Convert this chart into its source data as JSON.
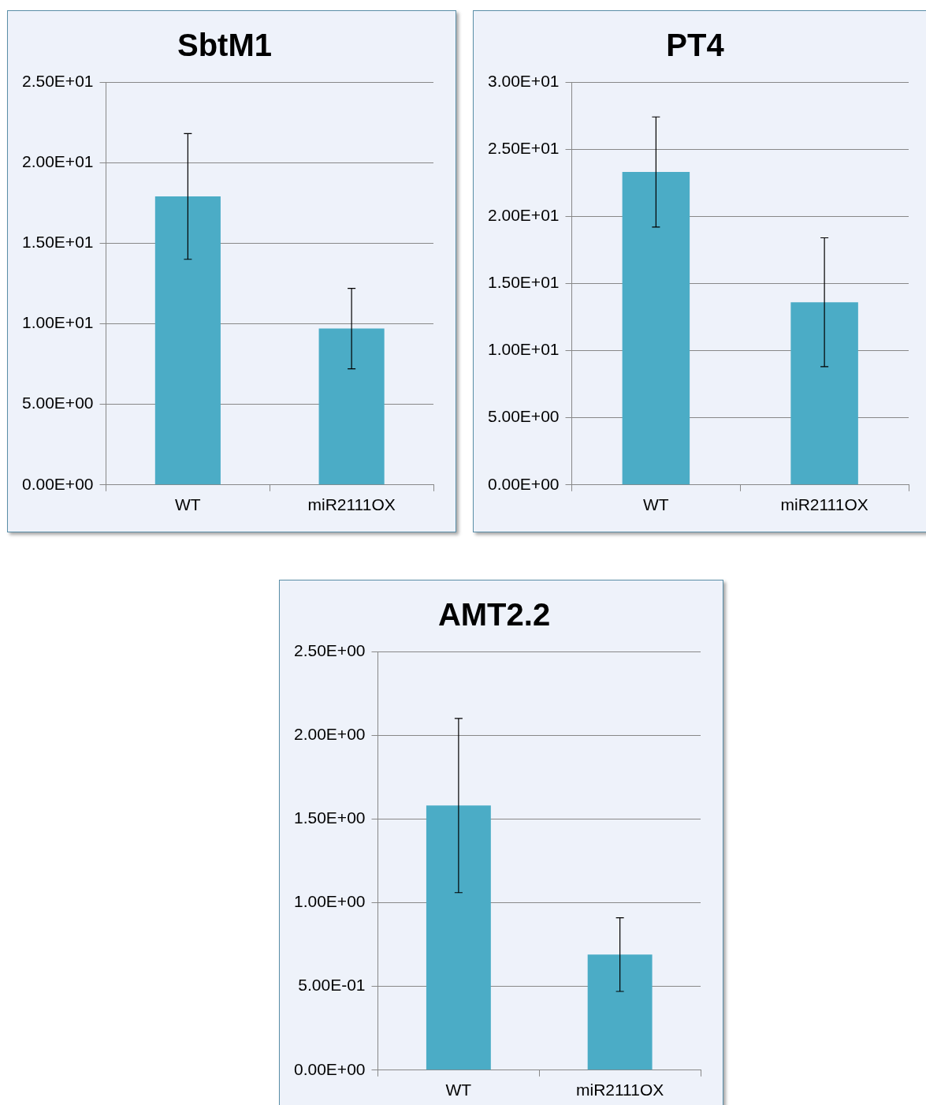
{
  "chart_data": [
    {
      "type": "bar",
      "title": "SbtM1",
      "categories": [
        "WT",
        "miR2111OX"
      ],
      "values": [
        17.9,
        9.7
      ],
      "errors": [
        3.9,
        2.5
      ],
      "color": "#4bacc6",
      "ylim": [
        0,
        25
      ],
      "yticks": [
        {
          "value": 0,
          "label": "0.00E+00"
        },
        {
          "value": 5,
          "label": "5.00E+00"
        },
        {
          "value": 10,
          "label": "1.00E+01"
        },
        {
          "value": 15,
          "label": "1.50E+01"
        },
        {
          "value": 20,
          "label": "2.00E+01"
        },
        {
          "value": 25,
          "label": "2.50E+01"
        }
      ],
      "grid": "y"
    },
    {
      "type": "bar",
      "title": "PT4",
      "categories": [
        "WT",
        "miR2111OX"
      ],
      "values": [
        23.3,
        13.6
      ],
      "errors": [
        4.1,
        4.8
      ],
      "color": "#4bacc6",
      "ylim": [
        0,
        30
      ],
      "yticks": [
        {
          "value": 0,
          "label": "0.00E+00"
        },
        {
          "value": 5,
          "label": "5.00E+00"
        },
        {
          "value": 10,
          "label": "1.00E+01"
        },
        {
          "value": 15,
          "label": "1.50E+01"
        },
        {
          "value": 20,
          "label": "2.00E+01"
        },
        {
          "value": 25,
          "label": "2.50E+01"
        },
        {
          "value": 30,
          "label": "3.00E+01"
        }
      ],
      "grid": "y"
    },
    {
      "type": "bar",
      "title": "AMT2.2",
      "categories": [
        "WT",
        "miR2111OX"
      ],
      "values": [
        1.58,
        0.69
      ],
      "errors": [
        0.52,
        0.22
      ],
      "color": "#4bacc6",
      "ylim": [
        0,
        2.5
      ],
      "yticks": [
        {
          "value": 0,
          "label": "0.00E+00"
        },
        {
          "value": 0.5,
          "label": "5.00E-01"
        },
        {
          "value": 1,
          "label": "1.00E+00"
        },
        {
          "value": 1.5,
          "label": "1.50E+00"
        },
        {
          "value": 2,
          "label": "2.00E+00"
        },
        {
          "value": 2.5,
          "label": "2.50E+00"
        }
      ],
      "grid": "y"
    }
  ]
}
